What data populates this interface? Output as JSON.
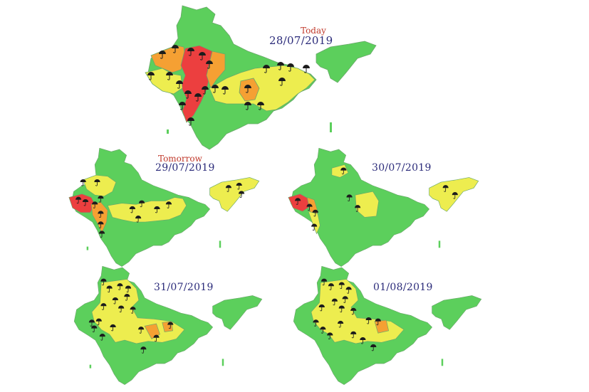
{
  "colors": {
    "green": "#5ccf5c",
    "yellow": "#eded4f",
    "orange": "#f5a033",
    "red": "#ec3f3f",
    "border": "#6aa86a",
    "umbrella": "#1c1c1c",
    "tag": "#c0392b",
    "date": "#2b2b7a"
  },
  "marker_icon": "umbrella-icon",
  "legend_levels": [
    "green",
    "yellow",
    "orange",
    "red"
  ],
  "maps": [
    {
      "id": "today",
      "tag": "Today",
      "date": "28/07/2019"
    },
    {
      "id": "tomorrow",
      "tag": "Tomorrow",
      "date": "29/07/2019"
    },
    {
      "id": "day3",
      "tag": "",
      "date": "30/07/2019"
    },
    {
      "id": "day4",
      "tag": "",
      "date": "31/07/2019"
    },
    {
      "id": "day5",
      "tag": "",
      "date": "01/08/2019"
    }
  ]
}
